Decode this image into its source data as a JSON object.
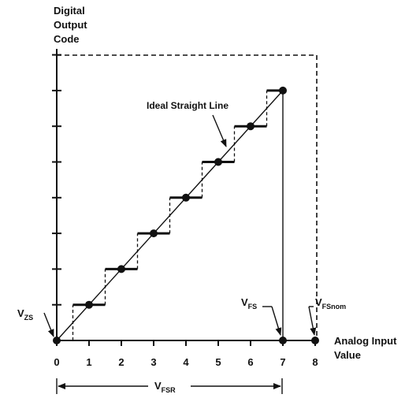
{
  "y_axis_label": [
    "Digital",
    "Output",
    "Code"
  ],
  "x_axis_label": [
    "Analog Input",
    "Value"
  ],
  "x_ticks": [
    "0",
    "1",
    "2",
    "3",
    "4",
    "5",
    "6",
    "7",
    "8"
  ],
  "ideal_line_label": "Ideal Straight Line",
  "vzs": {
    "main": "V",
    "sub": "ZS"
  },
  "vfs": {
    "main": "V",
    "sub": "FS"
  },
  "vfsnom": {
    "main": "V",
    "sub": "FSnom"
  },
  "vfsr": {
    "main": "V",
    "sub": "FSR"
  },
  "chart_data": {
    "type": "line",
    "codes": 8,
    "x_range": [
      0,
      8
    ],
    "ideal_points": [
      [
        0,
        0
      ],
      [
        1,
        1
      ],
      [
        2,
        2
      ],
      [
        3,
        3
      ],
      [
        4,
        4
      ],
      [
        5,
        5
      ],
      [
        6,
        6
      ],
      [
        7,
        7
      ]
    ],
    "transition_thresholds": [
      0.5,
      1.5,
      2.5,
      3.5,
      4.5,
      5.5,
      6.5
    ]
  }
}
